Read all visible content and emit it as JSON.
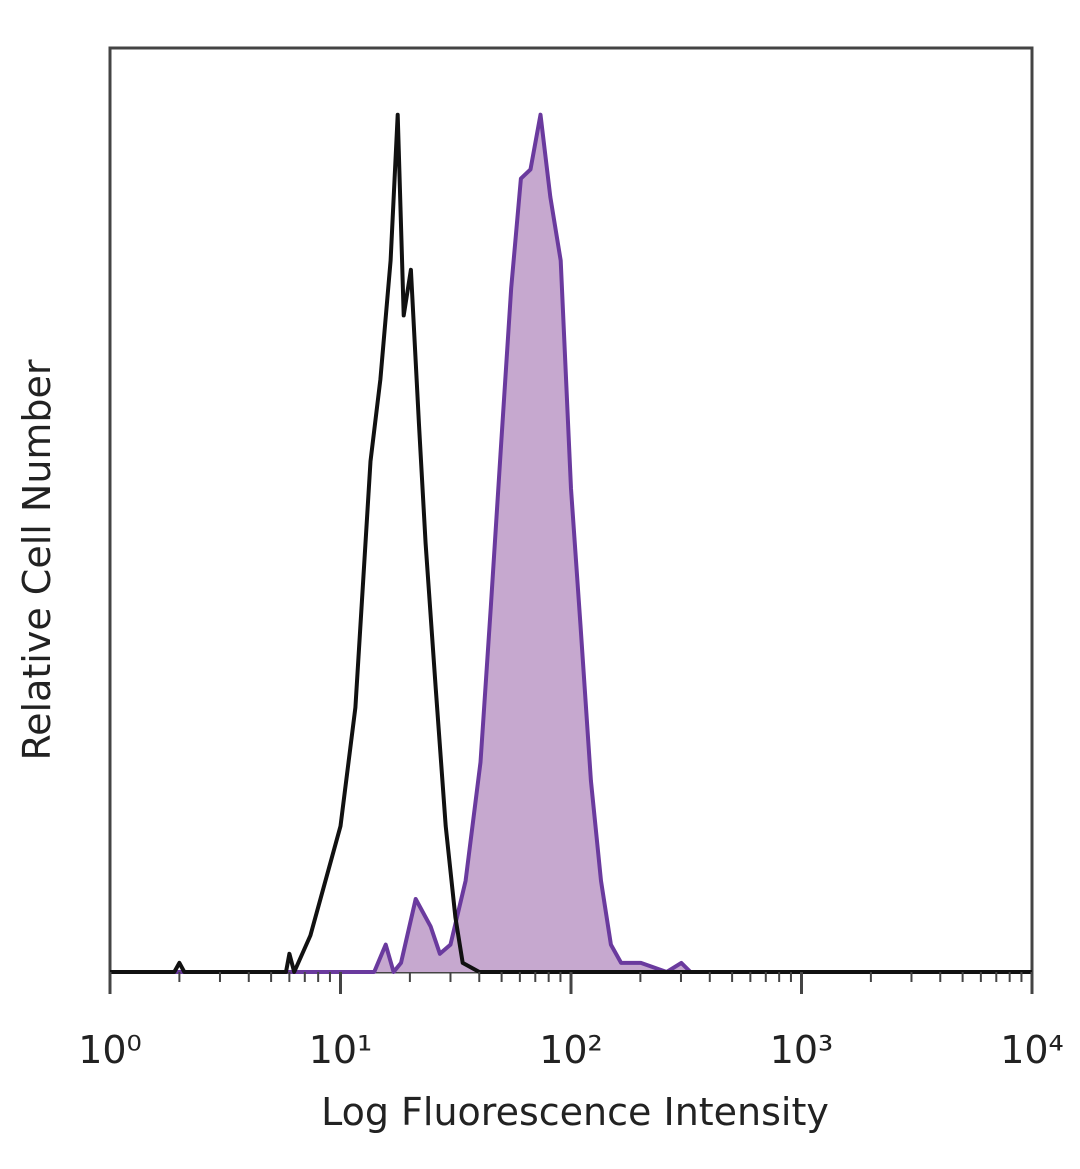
{
  "chart_data": {
    "type": "histogram-overlay",
    "x_label": "Log Fluorescence Intensity",
    "y_label": "Relative Cell Number",
    "xscale": "log",
    "xlim": [
      1,
      10000
    ],
    "xticks": [
      {
        "value": 1,
        "label": "10⁰"
      },
      {
        "value": 10,
        "label": "10¹"
      },
      {
        "value": 100,
        "label": "10²"
      },
      {
        "value": 1000,
        "label": "10³"
      },
      {
        "value": 10000,
        "label": "10⁴"
      }
    ],
    "xminorticks": [
      2,
      3,
      4,
      5,
      6,
      7,
      8,
      9,
      20,
      30,
      40,
      50,
      60,
      70,
      80,
      90,
      200,
      300,
      400,
      500,
      600,
      700,
      800,
      900,
      2000,
      3000,
      4000,
      5000,
      6000,
      7000,
      8000,
      9000
    ],
    "ylim": [
      0,
      100
    ],
    "series": [
      {
        "color": "#6a3a9e",
        "fill": "#c6a8cf",
        "x": [
          1,
          14,
          15.7,
          17,
          18.3,
          21.2,
          24.6,
          27,
          30,
          34.9,
          40.5,
          44.9,
          49.8,
          55,
          60.6,
          66.7,
          73.7,
          81.3,
          90.2,
          100,
          110,
          122,
          135,
          149,
          165,
          201,
          260,
          301,
          330,
          10000
        ],
        "values": [
          0,
          0,
          3,
          0,
          1,
          8,
          5,
          2,
          3,
          10,
          23,
          40,
          58,
          75,
          87,
          88,
          94,
          85,
          78,
          53,
          38,
          21,
          10,
          3,
          1,
          1,
          0,
          1,
          0,
          0
        ]
      },
      {
        "color": "#111111",
        "x": [
          1,
          1.9,
          2,
          2.1,
          5.8,
          6,
          6.3,
          7.4,
          10,
          11.6,
          13.5,
          14.9,
          16.5,
          17.7,
          18.8,
          20.2,
          21.9,
          23.4,
          25.9,
          28.6,
          31.5,
          33.9,
          40,
          10000
        ],
        "values": [
          0,
          0,
          1,
          0,
          0,
          2,
          0,
          4,
          16,
          29,
          56,
          65,
          78,
          94,
          72,
          77,
          60,
          47,
          31,
          16,
          6,
          1,
          0,
          0
        ]
      }
    ]
  }
}
